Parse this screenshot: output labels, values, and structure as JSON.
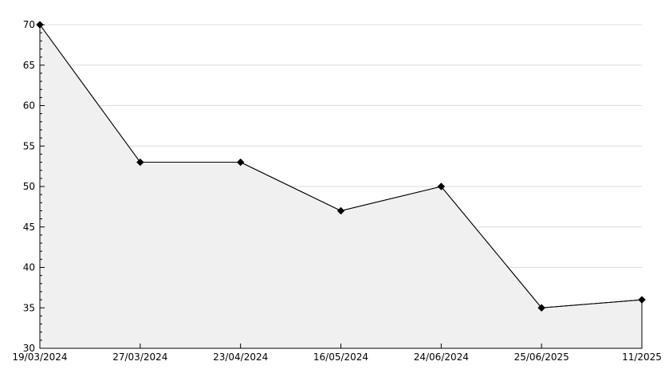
{
  "chart_data": {
    "type": "area",
    "title": "",
    "xlabel": "",
    "ylabel": "",
    "categories": [
      "19/03/2024",
      "27/03/2024",
      "23/04/2024",
      "16/05/2024",
      "24/06/2024",
      "25/06/2025",
      "11/2025"
    ],
    "values": [
      70,
      53,
      53,
      47,
      50,
      35,
      36
    ],
    "ylim": [
      30,
      70
    ],
    "y_major_step": 5,
    "y_minor_step": 1,
    "y_tick_labels": [
      "30",
      "35",
      "40",
      "45",
      "50",
      "55",
      "60",
      "65",
      "70"
    ],
    "grid": "horizontal-major",
    "legend": "none",
    "marker": "diamond",
    "colors": {
      "background": "#ffffff",
      "line": "#000000",
      "marker": "#000000",
      "area_fill": "#f0f0f0",
      "area_edge": "#000000",
      "gridline": "#dcdcdc",
      "axis": "#000000",
      "tick_label": "#000000"
    }
  }
}
